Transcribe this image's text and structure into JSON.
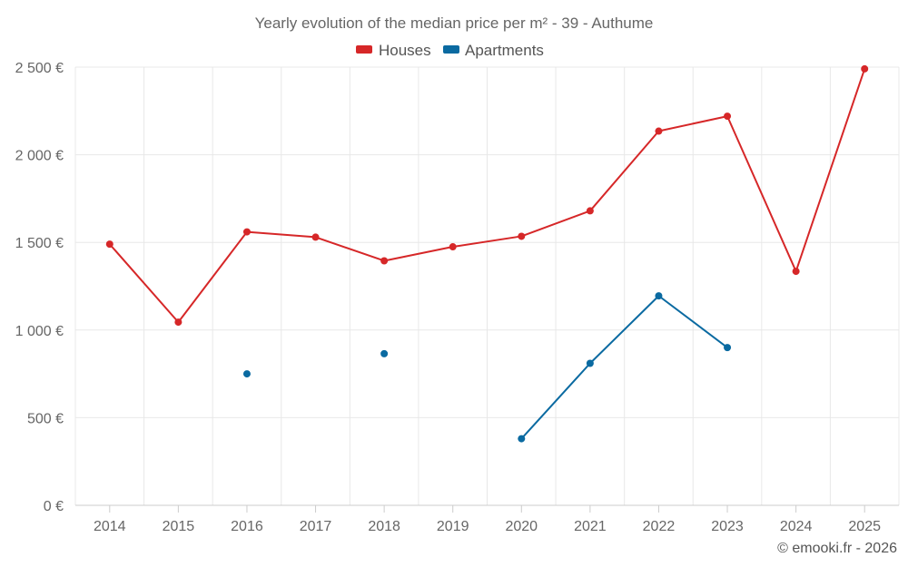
{
  "chart_data": {
    "type": "line",
    "title": "Yearly evolution of the median price per m² - 39 - Authume",
    "categories": [
      "2014",
      "2015",
      "2016",
      "2017",
      "2018",
      "2019",
      "2020",
      "2021",
      "2022",
      "2023",
      "2024",
      "2025"
    ],
    "ylim": [
      0,
      2500
    ],
    "yticks": [
      0,
      500,
      1000,
      1500,
      2000,
      2500
    ],
    "ytick_labels": [
      "0 €",
      "500 €",
      "1 000 €",
      "1 500 €",
      "2 000 €",
      "2 500 €"
    ],
    "grid": true,
    "legend_position": "top-center",
    "series": [
      {
        "name": "Houses",
        "color": "#d62728",
        "values": [
          1490,
          1045,
          1560,
          1530,
          1395,
          1475,
          1535,
          1680,
          2135,
          2220,
          1335,
          2490
        ]
      },
      {
        "name": "Apartments",
        "color": "#0a6aa1",
        "values": [
          null,
          null,
          750,
          null,
          865,
          null,
          380,
          810,
          1195,
          900,
          null,
          null
        ]
      }
    ]
  },
  "credit": "© emooki.fr - 2026"
}
